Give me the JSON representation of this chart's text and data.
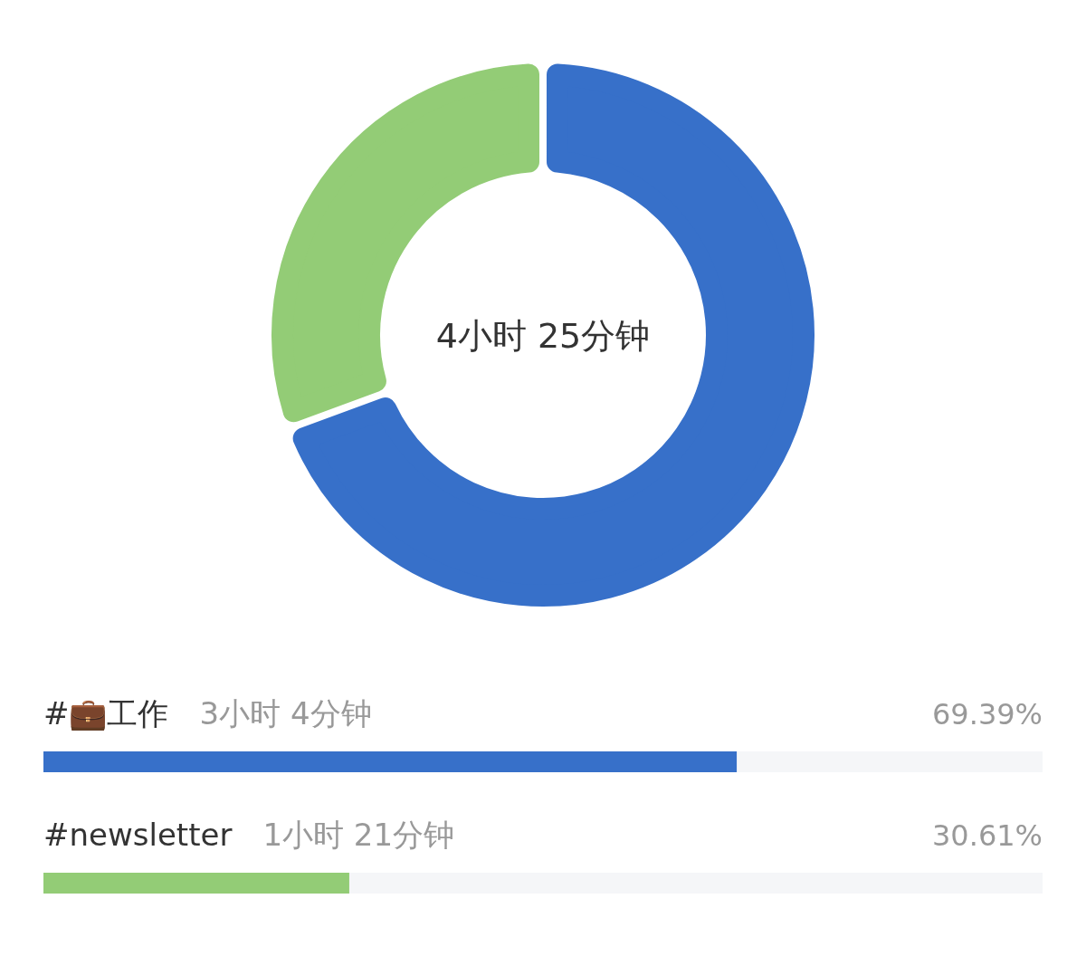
{
  "chart_data": [
    {
      "type": "donut",
      "categories": [
        null,
        null
      ],
      "values": [
        69.39,
        30.61
      ],
      "colors": [
        "#3770c9",
        "#93cc76"
      ],
      "annotations": [
        "4小时 25分钟"
      ]
    },
    {
      "type": "bar",
      "orientation": "horizontal",
      "categories": [
        "#💼工作",
        "#newsletter"
      ],
      "values": [
        69.39,
        30.61
      ],
      "colors": [
        "#3770c9",
        "#93cc76"
      ],
      "xlim": [
        0,
        100
      ],
      "value_labels": [
        "69.39%",
        "30.61%"
      ],
      "annotations": [
        "3小时 4分钟",
        "1小时 21分钟"
      ]
    }
  ]
}
